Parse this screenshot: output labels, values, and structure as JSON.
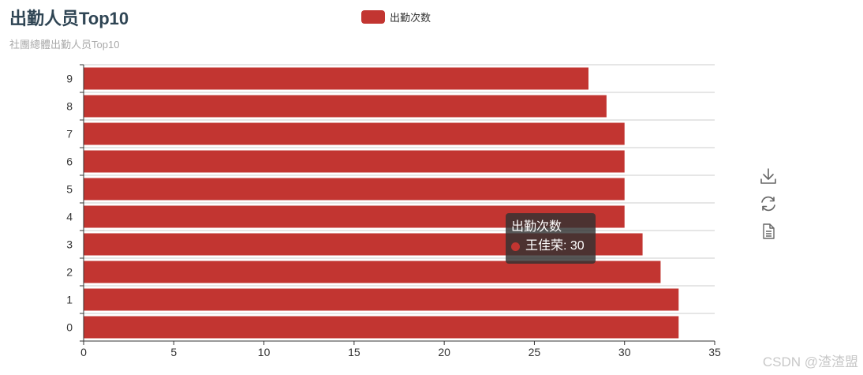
{
  "chart_data": {
    "type": "bar",
    "orientation": "horizontal",
    "title": "出勤人员Top10",
    "subtitle": "社團總體出勤人员Top10",
    "categories": [
      "0",
      "1",
      "2",
      "3",
      "4",
      "5",
      "6",
      "7",
      "8",
      "9"
    ],
    "series": [
      {
        "name": "出勤次数",
        "values": [
          33,
          33,
          32,
          31,
          30,
          30,
          30,
          30,
          29,
          28
        ],
        "color": "#c23531"
      }
    ],
    "xlim": [
      0,
      35
    ],
    "xticks": [
      0,
      5,
      10,
      15,
      20,
      25,
      30,
      35
    ],
    "legend_position": "top-center",
    "grid": true
  },
  "tooltip": {
    "title": "出勤次数",
    "row": "王佳荣: 30"
  },
  "toolbox": {
    "icons": [
      "download-icon",
      "refresh-icon",
      "data-view-icon"
    ]
  },
  "watermark": "CSDN @渣渣盟"
}
